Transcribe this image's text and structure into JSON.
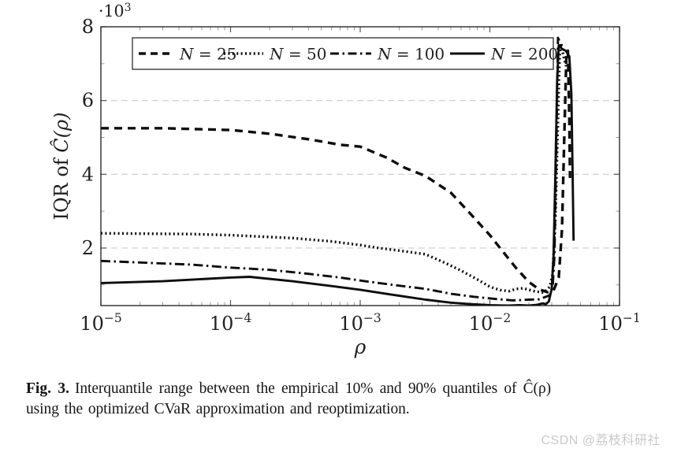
{
  "figure": {
    "caption_label": "Fig. 3.",
    "caption_line1": "Interquantile range between the empirical 10% and 90% quantiles of Ĉ(ρ)",
    "caption_line2": "using the optimized CVaR approximation and reoptimization.",
    "watermark": "CSDN @荔枝科研社"
  },
  "colors": {
    "curve": "#0d0d0d",
    "axis": "#1a1a1a",
    "grid": "#cccccc",
    "tick_major": "#555555",
    "tick_minor": "#9a9a9a",
    "label": "#222222",
    "watermark": "#c9c9c9"
  },
  "chart_data": {
    "type": "line",
    "x_scale": "log",
    "xlabel": "ρ",
    "ylabel": {
      "prefix": "IQR of ",
      "math": "Ĉ(ρ)"
    },
    "y_multiplier": {
      "base": "·10",
      "exp": "3"
    },
    "y_unit_note": "y values are in units of 10^3",
    "xlim": [
      1e-05,
      0.1
    ],
    "ylim": [
      0.44,
      8
    ],
    "grid_y": [
      2,
      4,
      6
    ],
    "grid": "dashed horizontal at major y ticks",
    "x_ticks": [
      {
        "value": 1e-05,
        "base": "10",
        "exp": "−5"
      },
      {
        "value": 0.0001,
        "base": "10",
        "exp": "−4"
      },
      {
        "value": 0.001,
        "base": "10",
        "exp": "−3"
      },
      {
        "value": 0.01,
        "base": "10",
        "exp": "−2"
      },
      {
        "value": 0.1,
        "base": "10",
        "exp": "−1"
      }
    ],
    "y_ticks": [
      2,
      4,
      6,
      8
    ],
    "y_minor_ticks": [
      1,
      3,
      5,
      7
    ],
    "legend_position": "top-left-inside",
    "legend": {
      "items": [
        {
          "label": "N = 25",
          "style": "dashed"
        },
        {
          "label": "N = 50",
          "style": "dotted"
        },
        {
          "label": "N = 100",
          "style": "dashdot"
        },
        {
          "label": "N = 200",
          "style": "solid"
        }
      ]
    },
    "series": [
      {
        "name": "N = 25",
        "style": "dashed",
        "points": [
          [
            1e-05,
            5.25
          ],
          [
            3e-05,
            5.25
          ],
          [
            0.0001,
            5.2
          ],
          [
            0.0002,
            5.1
          ],
          [
            0.0004,
            4.95
          ],
          [
            0.0007,
            4.8
          ],
          [
            0.001,
            4.75
          ],
          [
            0.0016,
            4.45
          ],
          [
            0.0022,
            4.18
          ],
          [
            0.0032,
            3.95
          ],
          [
            0.005,
            3.5
          ],
          [
            0.007,
            2.95
          ],
          [
            0.01,
            2.35
          ],
          [
            0.012,
            2.0
          ],
          [
            0.016,
            1.45
          ],
          [
            0.02,
            1.08
          ],
          [
            0.024,
            0.88
          ],
          [
            0.028,
            0.8
          ],
          [
            0.031,
            0.85
          ],
          [
            0.034,
            1.2
          ],
          [
            0.036,
            2.5
          ],
          [
            0.0375,
            5.0
          ],
          [
            0.039,
            7.3
          ],
          [
            0.04,
            7.35
          ],
          [
            0.041,
            5.5
          ],
          [
            0.0415,
            3.9
          ]
        ]
      },
      {
        "name": "N = 50",
        "style": "dotted",
        "points": [
          [
            1e-05,
            2.4
          ],
          [
            5e-05,
            2.38
          ],
          [
            0.0001,
            2.35
          ],
          [
            0.0003,
            2.27
          ],
          [
            0.0006,
            2.18
          ],
          [
            0.001,
            2.08
          ],
          [
            0.0014,
            2.0
          ],
          [
            0.002,
            1.93
          ],
          [
            0.0032,
            1.83
          ],
          [
            0.0045,
            1.6
          ],
          [
            0.0059,
            1.4
          ],
          [
            0.008,
            1.15
          ],
          [
            0.01,
            0.95
          ],
          [
            0.012,
            0.86
          ],
          [
            0.014,
            0.83
          ],
          [
            0.016,
            0.89
          ],
          [
            0.018,
            0.91
          ],
          [
            0.022,
            0.83
          ],
          [
            0.026,
            0.79
          ],
          [
            0.029,
            0.95
          ],
          [
            0.0305,
            1.3
          ],
          [
            0.032,
            2.8
          ],
          [
            0.0335,
            5.5
          ],
          [
            0.0345,
            7.2
          ],
          [
            0.0355,
            7.55
          ],
          [
            0.037,
            7.2
          ],
          [
            0.039,
            6.9
          ]
        ]
      },
      {
        "name": "N = 100",
        "style": "dashdot",
        "points": [
          [
            1e-05,
            1.65
          ],
          [
            5e-05,
            1.55
          ],
          [
            0.0001,
            1.47
          ],
          [
            0.0002,
            1.41
          ],
          [
            0.0004,
            1.3
          ],
          [
            0.0007,
            1.2
          ],
          [
            0.001,
            1.12
          ],
          [
            0.0018,
            1.0
          ],
          [
            0.0032,
            0.89
          ],
          [
            0.005,
            0.76
          ],
          [
            0.0075,
            0.68
          ],
          [
            0.011,
            0.62
          ],
          [
            0.015,
            0.58
          ],
          [
            0.02,
            0.6
          ],
          [
            0.024,
            0.61
          ],
          [
            0.029,
            0.72
          ],
          [
            0.0305,
            0.95
          ],
          [
            0.0315,
            1.8
          ],
          [
            0.0325,
            4.5
          ],
          [
            0.0335,
            7.7
          ],
          [
            0.0345,
            7.6
          ],
          [
            0.0355,
            7.4
          ]
        ]
      },
      {
        "name": "N = 200",
        "style": "solid",
        "points": [
          [
            1e-05,
            1.05
          ],
          [
            3e-05,
            1.1
          ],
          [
            0.0001,
            1.2
          ],
          [
            0.00014,
            1.22
          ],
          [
            0.0003,
            1.1
          ],
          [
            0.0006,
            0.97
          ],
          [
            0.001,
            0.87
          ],
          [
            0.0018,
            0.73
          ],
          [
            0.0032,
            0.6
          ],
          [
            0.005,
            0.52
          ],
          [
            0.007,
            0.48
          ],
          [
            0.01,
            0.45
          ],
          [
            0.014,
            0.44
          ],
          [
            0.017,
            0.45
          ],
          [
            0.02,
            0.44
          ],
          [
            0.023,
            0.46
          ],
          [
            0.0255,
            0.5
          ],
          [
            0.027,
            0.48
          ],
          [
            0.0285,
            0.55
          ],
          [
            0.03,
            0.9
          ],
          [
            0.031,
            1.8
          ],
          [
            0.032,
            4.0
          ],
          [
            0.033,
            6.5
          ],
          [
            0.034,
            7.5
          ],
          [
            0.036,
            7.4
          ],
          [
            0.0385,
            7.35
          ],
          [
            0.041,
            7.2
          ],
          [
            0.0425,
            6.2
          ],
          [
            0.0435,
            4.0
          ],
          [
            0.0442,
            2.2
          ]
        ]
      }
    ]
  }
}
